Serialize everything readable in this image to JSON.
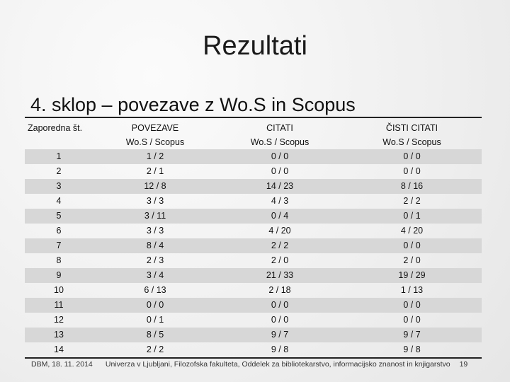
{
  "slide": {
    "title": "Rezultati",
    "subtitle": "4. sklop – povezave z Wo.S in Scopus"
  },
  "table": {
    "headers": {
      "index": "Zaporedna št.",
      "col1_top": "POVEZAVE",
      "col1_sub": "Wo.S / Scopus",
      "col2_top": "CITATI",
      "col2_sub": "Wo.S / Scopus",
      "col3_top": "ČISTI CITATI",
      "col3_sub": "Wo.S / Scopus"
    },
    "rows": [
      {
        "n": "1",
        "povezave": "1 / 2",
        "citati": "0 / 0",
        "cisti": "0 / 0"
      },
      {
        "n": "2",
        "povezave": "2 / 1",
        "citati": "0 / 0",
        "cisti": "0 / 0"
      },
      {
        "n": "3",
        "povezave": "12 / 8",
        "citati": "14 / 23",
        "cisti": "8 / 16"
      },
      {
        "n": "4",
        "povezave": "3 / 3",
        "citati": "4 / 3",
        "cisti": "2 / 2"
      },
      {
        "n": "5",
        "povezave": "3 / 11",
        "citati": "0 / 4",
        "cisti": "0 / 1"
      },
      {
        "n": "6",
        "povezave": "3 / 3",
        "citati": "4 / 20",
        "cisti": "4 / 20"
      },
      {
        "n": "7",
        "povezave": "8 / 4",
        "citati": "2 / 2",
        "cisti": "0 / 0"
      },
      {
        "n": "8",
        "povezave": "2 / 3",
        "citati": "2 / 0",
        "cisti": "2 / 0"
      },
      {
        "n": "9",
        "povezave": "3 / 4",
        "citati": "21 / 33",
        "cisti": "19 / 29"
      },
      {
        "n": "10",
        "povezave": "6 / 13",
        "citati": "2 / 18",
        "cisti": "1 / 13"
      },
      {
        "n": "11",
        "povezave": "0 / 0",
        "citati": "0 / 0",
        "cisti": "0 / 0"
      },
      {
        "n": "12",
        "povezave": "0 / 1",
        "citati": "0 / 0",
        "cisti": "0 / 0"
      },
      {
        "n": "13",
        "povezave": "8 / 5",
        "citati": "9 / 7",
        "cisti": "9 / 7"
      },
      {
        "n": "14",
        "povezave": "2 / 2",
        "citati": "9 / 8",
        "cisti": "9 / 8"
      }
    ]
  },
  "footer": {
    "date": "DBM, 18. 11. 2014",
    "institution": "Univerza v Ljubljani, Filozofska fakulteta, Oddelek za bibliotekarstvo, informacijsko znanost in knjigarstvo",
    "page": "19"
  }
}
